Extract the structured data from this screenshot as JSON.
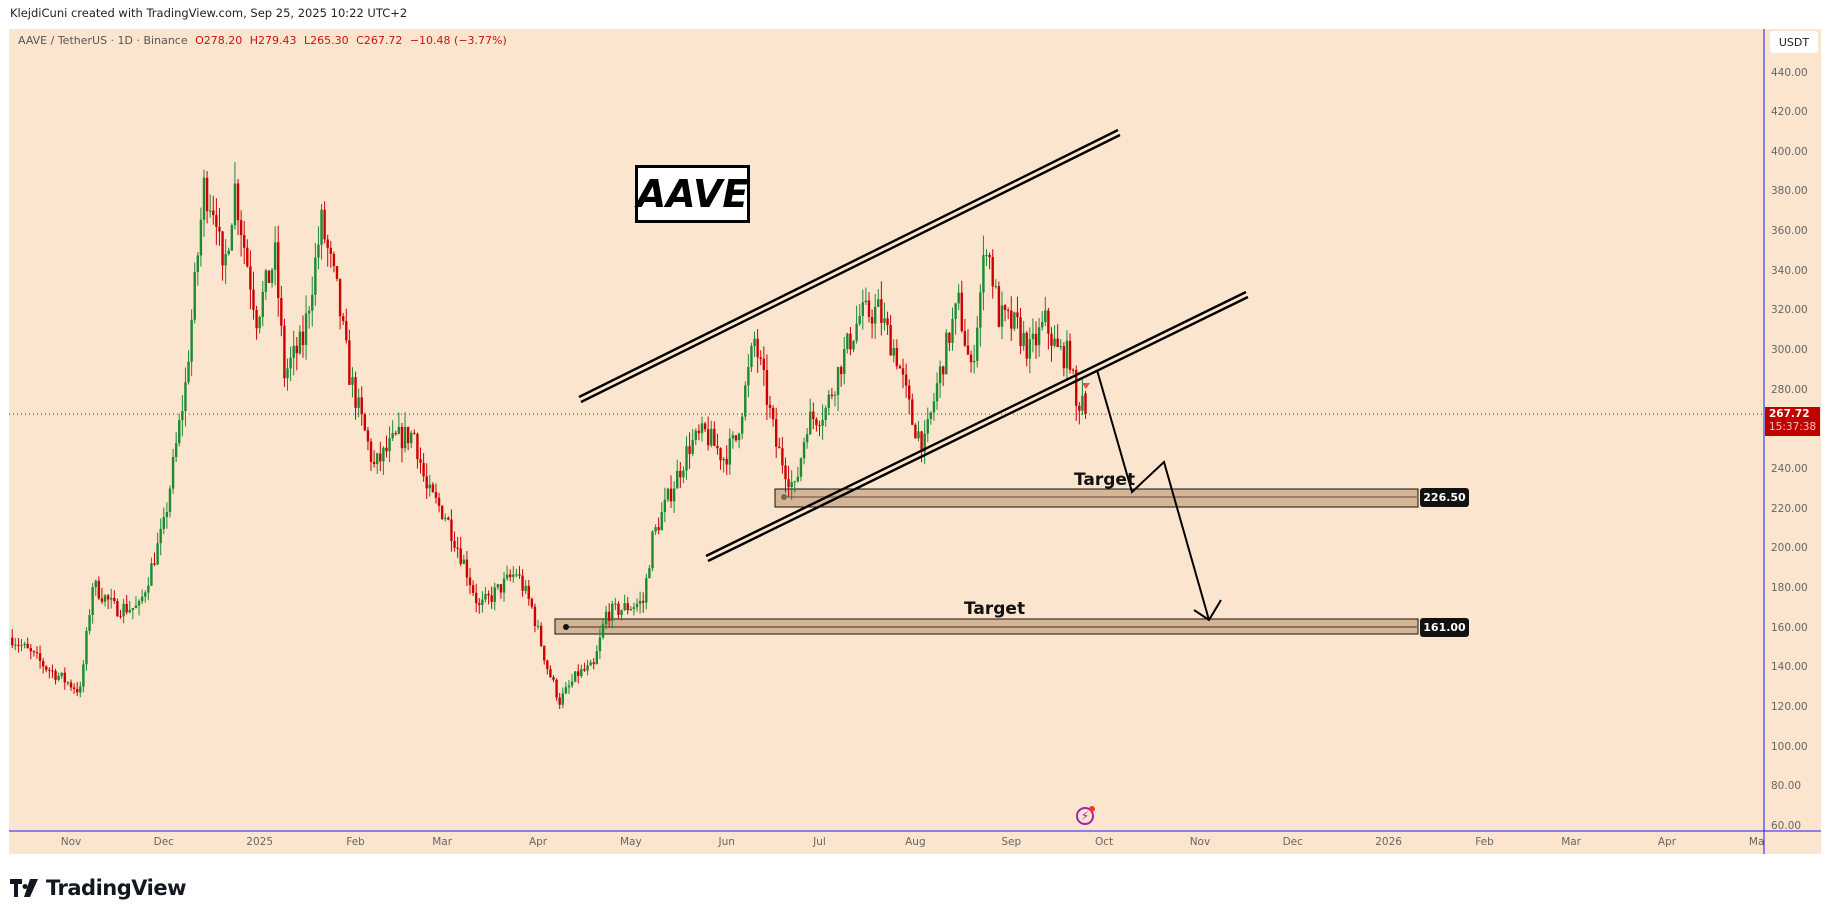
{
  "header": {
    "text": "KlejdiCuni created with TradingView.com, Sep 25, 2025 10:22 UTC+2"
  },
  "legend": {
    "symbol": "AAVE / TetherUS · 1D · Binance",
    "open": "O278.20",
    "high": "H279.43",
    "low": "L265.30",
    "close": "C267.72",
    "change": "−10.48 (−3.77%)"
  },
  "price_axis": {
    "currency": "USDT",
    "labels": [
      "440.00",
      "420.00",
      "400.00",
      "380.00",
      "360.00",
      "340.00",
      "320.00",
      "300.00",
      "280.00",
      "240.00",
      "220.00",
      "200.00",
      "180.00",
      "160.00",
      "140.00",
      "120.00",
      "100.00",
      "80.00",
      "60.00"
    ],
    "last_price": "267.72",
    "countdown": "15:37:38"
  },
  "time_axis": {
    "labels": [
      {
        "label": "Nov",
        "date": "2024-11-01"
      },
      {
        "label": "Dec",
        "date": "2024-12-01"
      },
      {
        "label": "2025",
        "date": "2025-01-01"
      },
      {
        "label": "Feb",
        "date": "2025-02-01"
      },
      {
        "label": "Mar",
        "date": "2025-03-01"
      },
      {
        "label": "Apr",
        "date": "2025-04-01"
      },
      {
        "label": "May",
        "date": "2025-05-01"
      },
      {
        "label": "Jun",
        "date": "2025-06-01"
      },
      {
        "label": "Jul",
        "date": "2025-07-01"
      },
      {
        "label": "Aug",
        "date": "2025-08-01"
      },
      {
        "label": "Sep",
        "date": "2025-09-01"
      },
      {
        "label": "Oct",
        "date": "2025-10-01"
      },
      {
        "label": "Nov",
        "date": "2025-11-01"
      },
      {
        "label": "Dec",
        "date": "2025-12-01"
      },
      {
        "label": "2026",
        "date": "2026-01-01"
      },
      {
        "label": "Feb",
        "date": "2026-02-01"
      },
      {
        "label": "Mar",
        "date": "2026-03-01"
      },
      {
        "label": "Apr",
        "date": "2026-04-01"
      },
      {
        "label": "May",
        "date": "2026-05-01"
      }
    ]
  },
  "annotations": {
    "title": "AAVE",
    "target1_label": "Target",
    "target1_price": "226.50",
    "target2_label": "Target",
    "target2_price": "161.00"
  },
  "colors": {
    "background": "#fbe5cf",
    "up": "#1b8a32",
    "down": "#cc0000",
    "axis_line": "#1a1aff",
    "target_zone": "#d4b596"
  },
  "branding": {
    "logo": "TradingView"
  },
  "chart_data": {
    "type": "candlestick",
    "symbol": "AAVE/USDT",
    "interval": "1D",
    "ylim": [
      60,
      440
    ],
    "xlim": [
      "2024-10-12",
      "2026-05-05"
    ],
    "grid": false,
    "approx_close_path": [
      [
        "2024-10-13",
        155
      ],
      [
        "2024-10-24",
        140
      ],
      [
        "2024-11-04",
        128
      ],
      [
        "2024-11-08",
        182
      ],
      [
        "2024-11-15",
        170
      ],
      [
        "2024-11-23",
        170
      ],
      [
        "2024-12-01",
        211
      ],
      [
        "2024-12-08",
        282
      ],
      [
        "2024-12-14",
        382
      ],
      [
        "2024-12-18",
        370
      ],
      [
        "2024-12-20",
        335
      ],
      [
        "2024-12-24",
        382
      ],
      [
        "2024-12-27",
        353
      ],
      [
        "2024-12-31",
        317
      ],
      [
        "2025-01-06",
        347
      ],
      [
        "2025-01-09",
        288
      ],
      [
        "2025-01-15",
        305
      ],
      [
        "2025-01-21",
        364
      ],
      [
        "2025-01-26",
        329
      ],
      [
        "2025-01-30",
        288
      ],
      [
        "2025-02-03",
        264
      ],
      [
        "2025-02-07",
        241
      ],
      [
        "2025-02-14",
        255
      ],
      [
        "2025-02-20",
        258
      ],
      [
        "2025-02-24",
        229
      ],
      [
        "2025-03-02",
        217
      ],
      [
        "2025-03-08",
        193
      ],
      [
        "2025-03-13",
        170
      ],
      [
        "2025-03-17",
        176
      ],
      [
        "2025-03-25",
        188
      ],
      [
        "2025-03-30",
        170
      ],
      [
        "2025-04-04",
        140
      ],
      [
        "2025-04-08",
        123
      ],
      [
        "2025-04-14",
        137
      ],
      [
        "2025-04-19",
        140
      ],
      [
        "2025-04-23",
        167
      ],
      [
        "2025-05-05",
        173
      ],
      [
        "2025-05-08",
        205
      ],
      [
        "2025-05-14",
        229
      ],
      [
        "2025-05-20",
        252
      ],
      [
        "2025-05-25",
        258
      ],
      [
        "2025-05-31",
        246
      ],
      [
        "2025-06-04",
        255
      ],
      [
        "2025-06-10",
        305
      ],
      [
        "2025-06-14",
        276
      ],
      [
        "2025-06-17",
        252
      ],
      [
        "2025-06-23",
        229
      ],
      [
        "2025-06-27",
        264
      ],
      [
        "2025-07-03",
        270
      ],
      [
        "2025-07-08",
        294
      ],
      [
        "2025-07-14",
        317
      ],
      [
        "2025-07-20",
        320
      ],
      [
        "2025-07-26",
        297
      ],
      [
        "2025-07-31",
        264
      ],
      [
        "2025-08-04",
        252
      ],
      [
        "2025-08-08",
        282
      ],
      [
        "2025-08-12",
        308
      ],
      [
        "2025-08-15",
        323
      ],
      [
        "2025-08-19",
        288
      ],
      [
        "2025-08-24",
        356
      ],
      [
        "2025-08-28",
        317
      ],
      [
        "2025-09-03",
        311
      ],
      [
        "2025-09-07",
        299
      ],
      [
        "2025-09-12",
        314
      ],
      [
        "2025-09-16",
        299
      ],
      [
        "2025-09-20",
        297
      ],
      [
        "2025-09-22",
        270
      ],
      [
        "2025-09-24",
        278.2
      ]
    ],
    "last_candle": {
      "date": "2025-09-25",
      "open": 278.2,
      "high": 279.43,
      "low": 265.3,
      "close": 267.72
    },
    "horizontal_levels": [
      226.5,
      161.0
    ]
  }
}
